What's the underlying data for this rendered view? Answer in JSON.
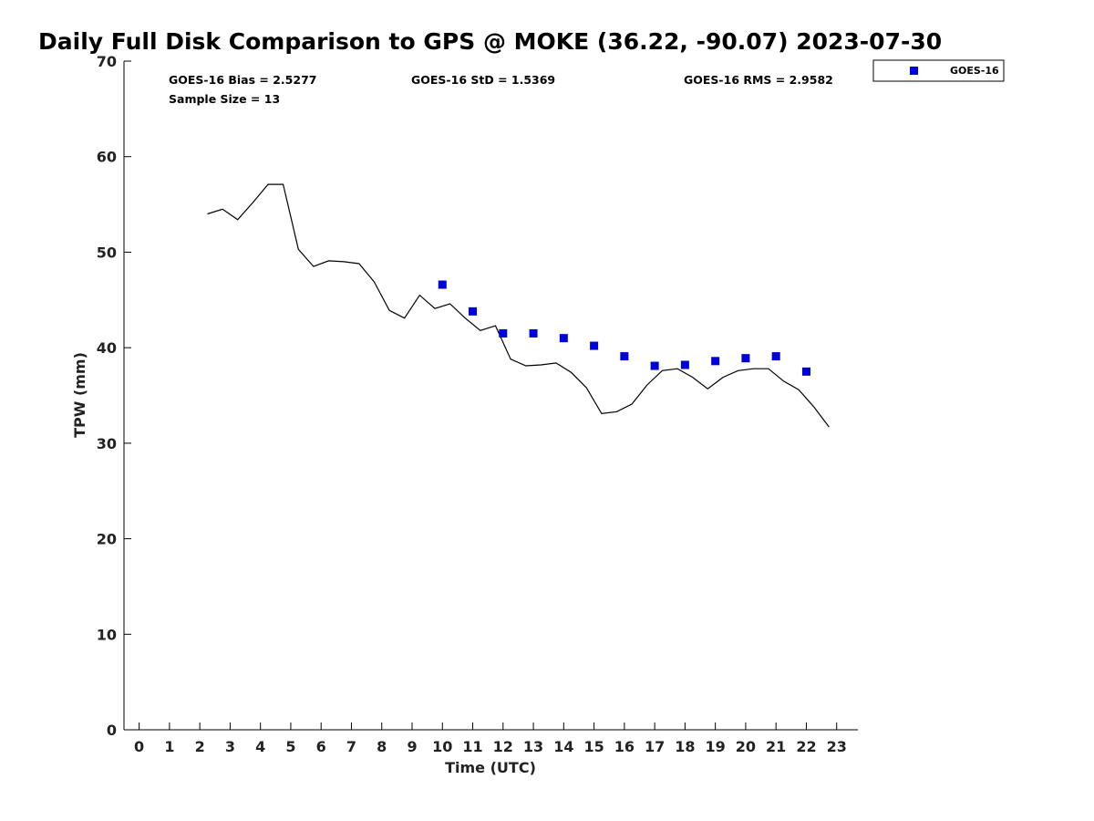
{
  "chart_data": {
    "type": "scatter",
    "title": "Daily Full Disk Comparison to GPS @ MOKE (36.22, -90.07) 2023-07-30",
    "xlabel": "Time (UTC)",
    "ylabel": "TPW (mm)",
    "xlim": [
      -0.5,
      23.7
    ],
    "ylim": [
      0,
      70
    ],
    "x_ticks": [
      0,
      1,
      2,
      3,
      4,
      5,
      6,
      7,
      8,
      9,
      10,
      11,
      12,
      13,
      14,
      15,
      16,
      17,
      18,
      19,
      20,
      21,
      22,
      23
    ],
    "y_ticks": [
      0,
      10,
      20,
      30,
      40,
      50,
      60,
      70
    ],
    "grid": false,
    "legend_position": "outside-top-right",
    "stats": {
      "bias": "GOES-16 Bias = 2.5277",
      "std": "GOES-16 StD = 1.5369",
      "rms": "GOES-16 RMS = 2.9582",
      "sample": "Sample Size = 13"
    },
    "series": [
      {
        "name": "GOES-16",
        "kind": "scatter",
        "color": "#0000dd",
        "x": [
          10,
          11,
          12,
          13,
          14,
          15,
          16,
          17,
          18,
          19,
          20,
          21,
          22
        ],
        "y": [
          46.6,
          43.8,
          41.5,
          41.5,
          41.0,
          40.2,
          39.1,
          38.1,
          38.2,
          38.6,
          38.9,
          39.1,
          37.5
        ]
      },
      {
        "kind": "line",
        "color": "#000000",
        "x": [
          2.25,
          2.75,
          3.25,
          3.75,
          4.25,
          4.75,
          5.25,
          5.75,
          6.25,
          6.75,
          7.25,
          7.75,
          8.25,
          8.75,
          9.25,
          9.75,
          10.25,
          10.75,
          11.25,
          11.75,
          12.25,
          12.75,
          13.25,
          13.75,
          14.25,
          14.75,
          15.25,
          15.75,
          16.25,
          16.75,
          17.25,
          17.75,
          18.25,
          18.75,
          19.25,
          19.75,
          20.25,
          20.75,
          21.25,
          21.75,
          22.25,
          22.75
        ],
        "y": [
          54.0,
          54.5,
          53.4,
          55.2,
          57.1,
          57.1,
          50.3,
          48.5,
          49.1,
          49.0,
          48.8,
          46.9,
          43.9,
          43.1,
          45.5,
          44.1,
          44.6,
          43.1,
          41.8,
          42.3,
          38.8,
          38.1,
          38.2,
          38.4,
          37.4,
          35.8,
          33.1,
          33.3,
          34.1,
          36.1,
          37.6,
          37.8,
          36.9,
          35.7,
          36.9,
          37.6,
          37.8,
          37.8,
          36.5,
          35.6,
          33.8,
          31.7
        ]
      }
    ]
  }
}
